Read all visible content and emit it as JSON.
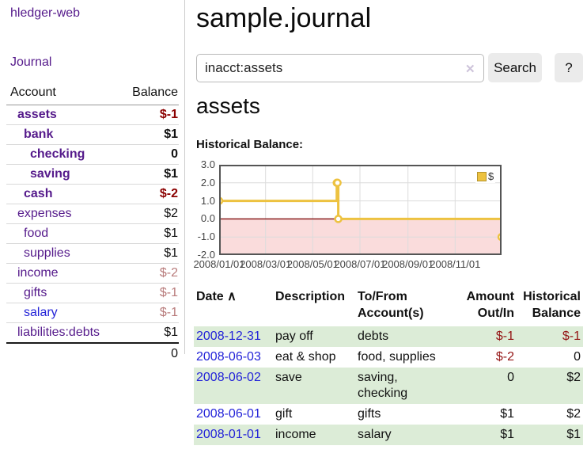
{
  "app": {
    "brand": "hledger-web",
    "nav": {
      "journal": "Journal"
    }
  },
  "sidebar": {
    "header": {
      "account": "Account",
      "balance": "Balance"
    },
    "accounts": [
      {
        "name": "assets",
        "balance": "$-1",
        "indent": 1,
        "bold": true,
        "link": "purple",
        "bal": "neg"
      },
      {
        "name": "bank",
        "balance": "$1",
        "indent": 2,
        "bold": true,
        "link": "purple",
        "bal": "plain"
      },
      {
        "name": "checking",
        "balance": "0",
        "indent": 3,
        "bold": true,
        "link": "purple",
        "bal": "plain"
      },
      {
        "name": "saving",
        "balance": "$1",
        "indent": 3,
        "bold": true,
        "link": "purple",
        "bal": "plain"
      },
      {
        "name": "cash",
        "balance": "$-2",
        "indent": 2,
        "bold": true,
        "link": "purple",
        "bal": "neg"
      },
      {
        "name": "expenses",
        "balance": "$2",
        "indent": 1,
        "bold": false,
        "link": "purple",
        "bal": "plain"
      },
      {
        "name": "food",
        "balance": "$1",
        "indent": 2,
        "bold": false,
        "link": "purple",
        "bal": "plain"
      },
      {
        "name": "supplies",
        "balance": "$1",
        "indent": 2,
        "bold": false,
        "link": "purple",
        "bal": "plain"
      },
      {
        "name": "income",
        "balance": "$-2",
        "indent": 1,
        "bold": false,
        "link": "purple",
        "bal": "negmuted"
      },
      {
        "name": "gifts",
        "balance": "$-1",
        "indent": 2,
        "bold": false,
        "link": "purple",
        "bal": "negmuted"
      },
      {
        "name": "salary",
        "balance": "$-1",
        "indent": 2,
        "bold": false,
        "link": "blue",
        "bal": "negmuted"
      },
      {
        "name": "liabilities:debts",
        "balance": "$1",
        "indent": 1,
        "bold": false,
        "link": "purple",
        "bal": "plain"
      }
    ],
    "total": "0"
  },
  "main": {
    "title": "sample.journal",
    "search": {
      "value": "inacct:assets",
      "clear": "✕",
      "button": "Search",
      "help": "?"
    },
    "heading": "assets",
    "chart_label": "Historical Balance:"
  },
  "chart_data": {
    "type": "line",
    "step": true,
    "title": "Historical Balance",
    "series": [
      {
        "name": "$",
        "color": "#edc240",
        "points": [
          [
            "2008-01-01",
            1
          ],
          [
            "2008-06-01",
            2
          ],
          [
            "2008-06-02",
            2
          ],
          [
            "2008-06-03",
            0
          ],
          [
            "2008-12-31",
            -1
          ]
        ]
      }
    ],
    "x_range": [
      "2008-01-01",
      "2008-12-31"
    ],
    "x_ticks": [
      "2008/01/01",
      "2008/03/01",
      "2008/05/01",
      "2008/07/01",
      "2008/09/01",
      "2008/11/01"
    ],
    "y_ticks": [
      3.0,
      2.0,
      1.0,
      0.0,
      -1.0,
      -2.0
    ],
    "y_tick_labels": [
      "3.0",
      "2.0",
      "1.0",
      "0.0",
      "-1.0",
      "-2.0"
    ],
    "ylim": [
      -2,
      3
    ],
    "grid": true,
    "legend_position": "top-right",
    "negative_region_color": "#fadcdc",
    "zero_line_color": "#8b2020"
  },
  "register": {
    "sort_icon": "∧",
    "headers": [
      {
        "line1": "Date",
        "line2": "",
        "align": "left",
        "sorted": "asc"
      },
      {
        "line1": "Description",
        "line2": "",
        "align": "left"
      },
      {
        "line1": "To/From",
        "line2": "Account(s)",
        "align": "left"
      },
      {
        "line1": "Amount",
        "line2": "Out/In",
        "align": "right"
      },
      {
        "line1": "Historical",
        "line2": "Balance",
        "align": "right"
      }
    ],
    "rows": [
      {
        "date": "2008-12-31",
        "description": "pay off",
        "accounts": "debts",
        "amount": "$-1",
        "balance": "$-1",
        "amount_neg": true,
        "balance_neg": true
      },
      {
        "date": "2008-06-03",
        "description": "eat & shop",
        "accounts": "food, supplies",
        "amount": "$-2",
        "balance": "0",
        "amount_neg": true,
        "balance_neg": false
      },
      {
        "date": "2008-06-02",
        "description": "save",
        "accounts": "saving, checking",
        "amount": "0",
        "balance": "$2",
        "amount_neg": false,
        "balance_neg": false
      },
      {
        "date": "2008-06-01",
        "description": "gift",
        "accounts": "gifts",
        "amount": "$1",
        "balance": "$2",
        "amount_neg": false,
        "balance_neg": false
      },
      {
        "date": "2008-01-01",
        "description": "income",
        "accounts": "salary",
        "amount": "$1",
        "balance": "$1",
        "amount_neg": false,
        "balance_neg": false
      }
    ]
  }
}
